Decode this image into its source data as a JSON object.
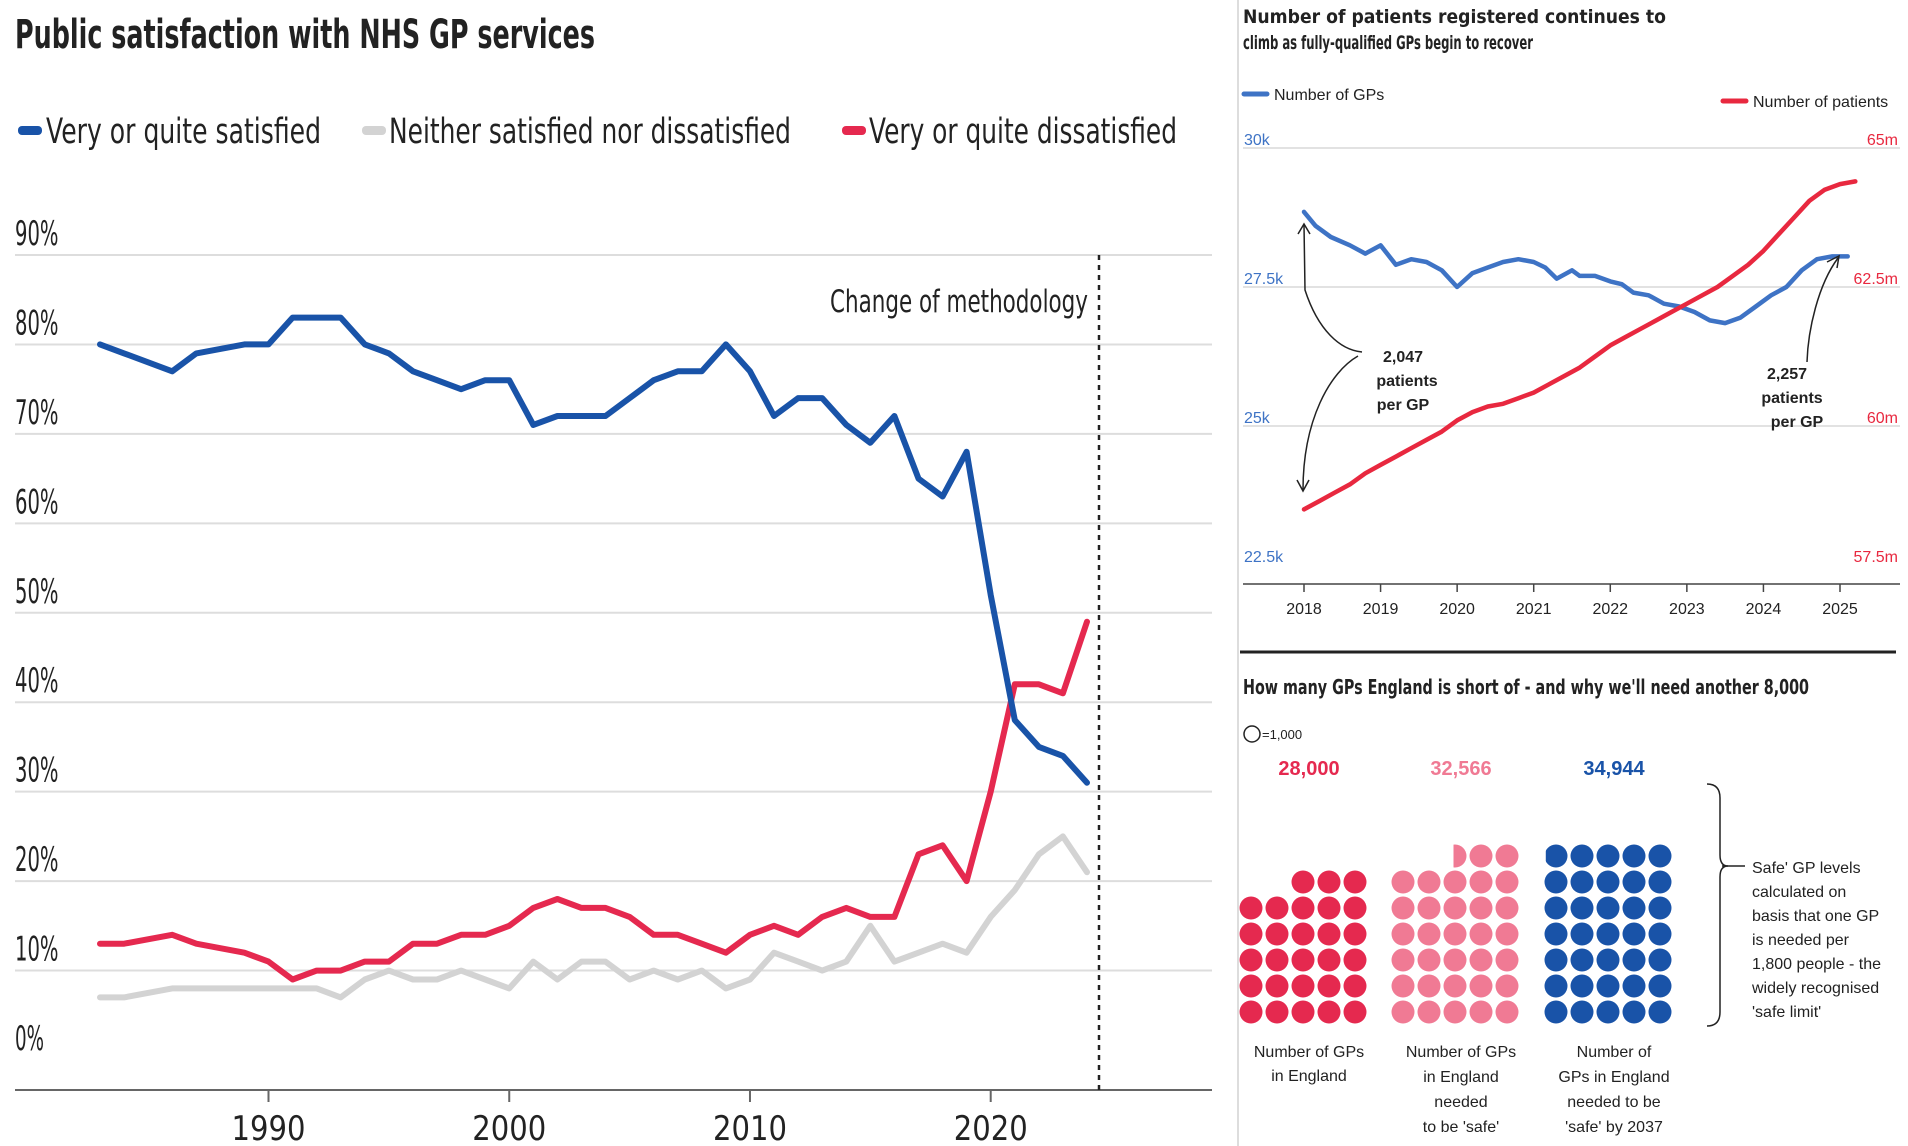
{
  "colors": {
    "satisfied": "#1953a8",
    "neither": "#d3d3d3",
    "dissatisfied": "#e5294f",
    "gps_line": "#3e73c5",
    "patients_line": "#e8283f",
    "safe_dot": "#f07a94",
    "grid": "#dddddd",
    "text": "#222222"
  },
  "chart_data": [
    {
      "type": "line",
      "title": "Public satisfaction with NHS GP services",
      "legend_placement": "top",
      "grid": true,
      "ylim": [
        0,
        90
      ],
      "yticks": [
        "0%",
        "10%",
        "20%",
        "30%",
        "40%",
        "50%",
        "60%",
        "70%",
        "80%",
        "90%"
      ],
      "xlim": [
        1983,
        2024
      ],
      "xticks": [
        "1990",
        "2000",
        "2010",
        "2020"
      ],
      "annotation": {
        "text": "Change of methodology",
        "x": 2020
      },
      "series": [
        {
          "name": "Very or quite satisfied",
          "color": "#1953a8",
          "x": [
            1983,
            1984,
            1986,
            1987,
            1989,
            1990,
            1991,
            1992,
            1993,
            1994,
            1995,
            1996,
            1997,
            1998,
            1999,
            2000,
            2001,
            2002,
            2003,
            2004,
            2005,
            2006,
            2007,
            2008,
            2009,
            2010,
            2011,
            2012,
            2013,
            2014,
            2015,
            2016,
            2017,
            2018,
            2019,
            2020,
            2021,
            2022,
            2023,
            2024
          ],
          "values": [
            80,
            79,
            77,
            79,
            80,
            80,
            83,
            83,
            83,
            80,
            79,
            77,
            76,
            75,
            76,
            76,
            71,
            72,
            72,
            72,
            74,
            76,
            77,
            77,
            80,
            77,
            72,
            74,
            74,
            71,
            69,
            72,
            65,
            63,
            68,
            52,
            38,
            35,
            34,
            31
          ]
        },
        {
          "name": "Neither satisfied nor dissatisfied",
          "color": "#d3d3d3",
          "x": [
            1983,
            1984,
            1986,
            1987,
            1989,
            1990,
            1991,
            1992,
            1993,
            1994,
            1995,
            1996,
            1997,
            1998,
            1999,
            2000,
            2001,
            2002,
            2003,
            2004,
            2005,
            2006,
            2007,
            2008,
            2009,
            2010,
            2011,
            2012,
            2013,
            2014,
            2015,
            2016,
            2017,
            2018,
            2019,
            2020,
            2021,
            2022,
            2023,
            2024
          ],
          "values": [
            7,
            7,
            8,
            8,
            8,
            8,
            8,
            8,
            7,
            9,
            10,
            9,
            9,
            10,
            9,
            8,
            11,
            9,
            11,
            11,
            9,
            10,
            9,
            10,
            8,
            9,
            12,
            11,
            10,
            11,
            15,
            11,
            12,
            13,
            12,
            16,
            19,
            23,
            25,
            21
          ]
        },
        {
          "name": "Very or quite dissatisfied",
          "color": "#e5294f",
          "x": [
            1983,
            1984,
            1986,
            1987,
            1989,
            1990,
            1991,
            1992,
            1993,
            1994,
            1995,
            1996,
            1997,
            1998,
            1999,
            2000,
            2001,
            2002,
            2003,
            2004,
            2005,
            2006,
            2007,
            2008,
            2009,
            2010,
            2011,
            2012,
            2013,
            2014,
            2015,
            2016,
            2017,
            2018,
            2019,
            2020,
            2021,
            2022,
            2023,
            2024
          ],
          "values": [
            13,
            13,
            14,
            13,
            12,
            11,
            9,
            10,
            10,
            11,
            11,
            13,
            13,
            14,
            14,
            15,
            17,
            18,
            17,
            17,
            16,
            14,
            14,
            13,
            12,
            14,
            15,
            14,
            16,
            17,
            16,
            16,
            23,
            24,
            20,
            30,
            42,
            42,
            41,
            49
          ]
        }
      ]
    },
    {
      "type": "line",
      "title": "Number of patients registered continues to climb as fully-qualified GPs begin to recover",
      "legend_placement": "top",
      "grid": true,
      "xticks": [
        "2018",
        "2019",
        "2020",
        "2021",
        "2022",
        "2023",
        "2024",
        "2025"
      ],
      "xlim": [
        2017.5,
        2025.8
      ],
      "y_left": {
        "label_ticks": [
          "22.5k",
          "25k",
          "27.5k",
          "30k"
        ],
        "ylim": [
          22.5,
          30
        ]
      },
      "y_right": {
        "label_ticks": [
          "57.5m",
          "60m",
          "62.5m",
          "65m"
        ],
        "ylim": [
          57.5,
          65
        ]
      },
      "series": [
        {
          "name": "Number of GPs",
          "axis": "left",
          "color": "#3e73c5",
          "x": [
            2018.0,
            2018.15,
            2018.35,
            2018.6,
            2018.8,
            2019.0,
            2019.2,
            2019.4,
            2019.6,
            2019.8,
            2020.0,
            2020.2,
            2020.4,
            2020.6,
            2020.8,
            2021.0,
            2021.15,
            2021.3,
            2021.5,
            2021.6,
            2021.8,
            2022.0,
            2022.15,
            2022.3,
            2022.5,
            2022.7,
            2022.9,
            2023.1,
            2023.3,
            2023.5,
            2023.7,
            2023.9,
            2024.1,
            2024.3,
            2024.5,
            2024.7,
            2024.9,
            2025.1
          ],
          "values": [
            28.85,
            28.6,
            28.4,
            28.25,
            28.1,
            28.25,
            27.9,
            28.0,
            27.95,
            27.8,
            27.5,
            27.75,
            27.85,
            27.95,
            28.0,
            27.95,
            27.85,
            27.65,
            27.8,
            27.7,
            27.7,
            27.6,
            27.55,
            27.4,
            27.35,
            27.2,
            27.15,
            27.05,
            26.9,
            26.85,
            26.95,
            27.15,
            27.35,
            27.5,
            27.8,
            28.0,
            28.05,
            28.05
          ]
        },
        {
          "name": "Number of patients",
          "axis": "right",
          "color": "#e8283f",
          "x": [
            2018.0,
            2018.2,
            2018.4,
            2018.6,
            2018.8,
            2019.0,
            2019.2,
            2019.4,
            2019.6,
            2019.8,
            2020.0,
            2020.2,
            2020.4,
            2020.6,
            2020.8,
            2021.0,
            2021.2,
            2021.4,
            2021.6,
            2021.8,
            2022.0,
            2022.2,
            2022.4,
            2022.6,
            2022.8,
            2023.0,
            2023.2,
            2023.4,
            2023.6,
            2023.8,
            2024.0,
            2024.2,
            2024.4,
            2024.6,
            2024.8,
            2025.0,
            2025.2
          ],
          "values": [
            58.5,
            58.65,
            58.8,
            58.95,
            59.15,
            59.3,
            59.45,
            59.6,
            59.75,
            59.9,
            60.1,
            60.25,
            60.35,
            60.4,
            60.5,
            60.6,
            60.75,
            60.9,
            61.05,
            61.25,
            61.45,
            61.6,
            61.75,
            61.9,
            62.05,
            62.2,
            62.35,
            62.5,
            62.7,
            62.9,
            63.15,
            63.45,
            63.75,
            64.05,
            64.25,
            64.35,
            64.4
          ]
        }
      ],
      "annotations": [
        {
          "lines": [
            "2,047",
            "patients",
            "per GP"
          ],
          "x": 2018.0
        },
        {
          "lines": [
            "2,257",
            "patients",
            "per GP"
          ],
          "x": 2025.1
        }
      ]
    },
    {
      "type": "pictogram",
      "title": "How many GPs England is short of - and why we'll need another 8,000",
      "key": "=1,000",
      "groups": [
        {
          "value_label": "28,000",
          "value": 28000,
          "color": "#e5294f",
          "caption": [
            "Number of GPs",
            "in England"
          ]
        },
        {
          "value_label": "32,566",
          "value": 32566,
          "color": "#f07a94",
          "caption": [
            "Number of GPs",
            "in England",
            "needed",
            "to be 'safe'"
          ]
        },
        {
          "value_label": "34,944",
          "value": 34944,
          "color": "#1953a8",
          "caption": [
            "Number of",
            "GPs in England",
            "needed to be",
            "'safe' by 2037"
          ]
        }
      ],
      "note": [
        "Safe' GP levels",
        "calculated on",
        "basis that one GP",
        "is needed per",
        "1,800 people - the",
        "widely recognised",
        "'safe limit'"
      ]
    }
  ]
}
